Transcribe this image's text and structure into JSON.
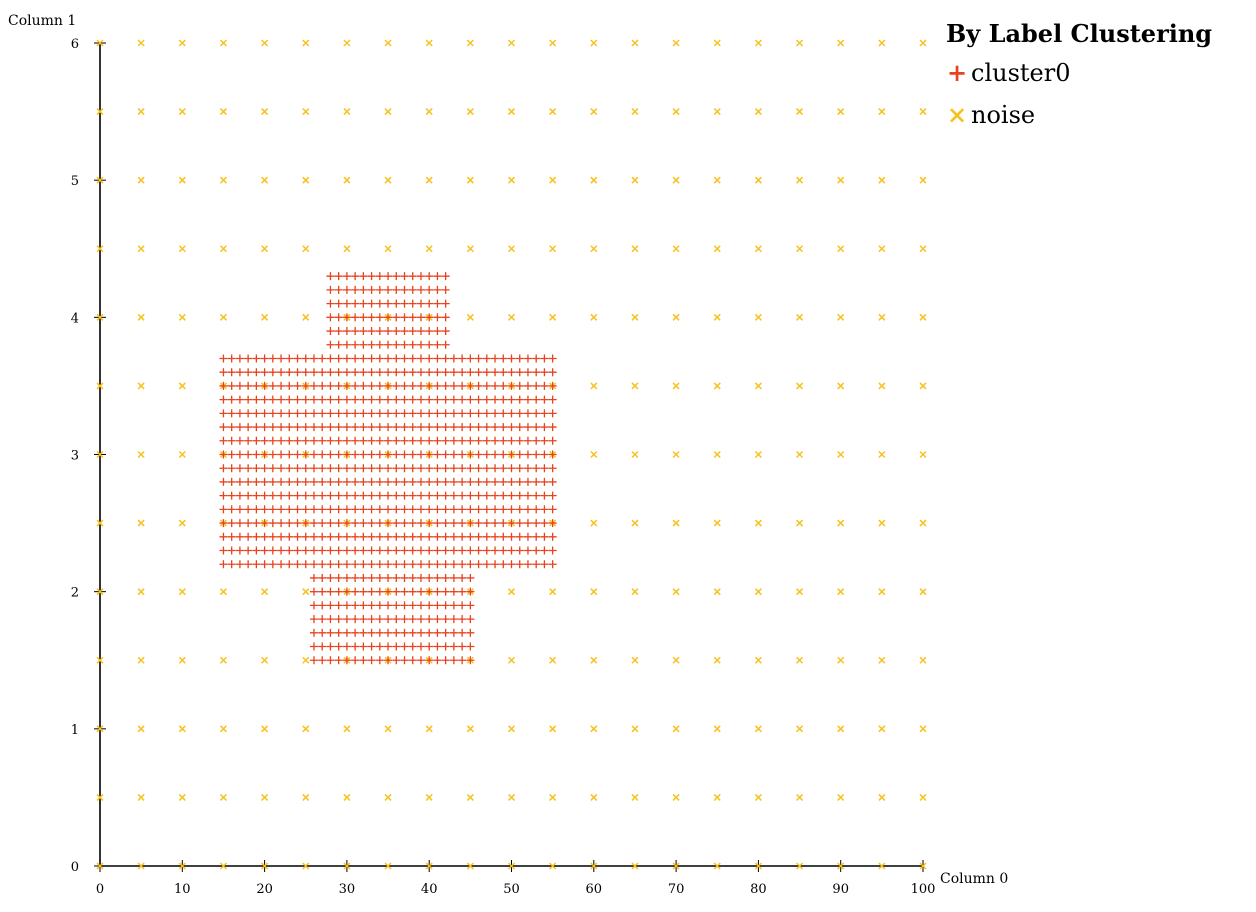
{
  "chart_data": {
    "type": "scatter",
    "title": "",
    "xlabel": "Column 0",
    "ylabel": "Column 1",
    "xlim": [
      0,
      100
    ],
    "ylim": [
      0,
      6
    ],
    "x_ticks": [
      0,
      10,
      20,
      30,
      40,
      50,
      60,
      70,
      80,
      90,
      100
    ],
    "y_ticks": [
      0,
      1,
      2,
      3,
      4,
      5,
      6
    ],
    "grid": false,
    "legend": {
      "title": "By Label Clustering",
      "placement": "top-right",
      "items": [
        {
          "name": "cluster0",
          "glyph": "+",
          "color": "#e8421f"
        },
        {
          "name": "noise",
          "glyph": "×",
          "color": "#f7c11e"
        }
      ]
    },
    "series": [
      {
        "name": "noise",
        "marker": "x",
        "color": "#f7c11e",
        "grid": {
          "x_start": 0,
          "x_end": 100,
          "x_step": 5,
          "y_start": 0,
          "y_end": 6,
          "y_step": 0.5
        }
      },
      {
        "name": "cluster0",
        "marker": "+",
        "color": "#e8421f",
        "blocks": [
          {
            "x_start": 28,
            "x_end": 42,
            "x_step": 1,
            "y_start": 3.8,
            "y_end": 4.3,
            "y_step": 0.1
          },
          {
            "x_start": 15,
            "x_end": 55,
            "x_step": 1,
            "y_start": 2.2,
            "y_end": 3.7,
            "y_step": 0.1
          },
          {
            "x_start": 26,
            "x_end": 45,
            "x_step": 1,
            "y_start": 1.5,
            "y_end": 2.1,
            "y_step": 0.1
          }
        ]
      }
    ]
  }
}
